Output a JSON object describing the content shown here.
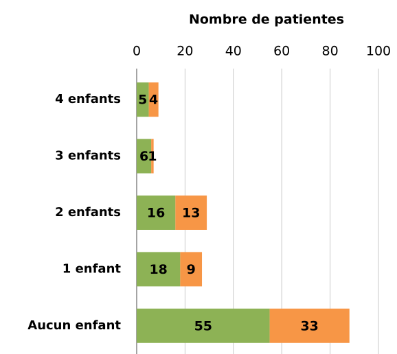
{
  "chart_data": {
    "type": "stacked_barh",
    "title": "Nombre de patientes",
    "categories": [
      "4 enfants",
      "3 enfants",
      "2 enfants",
      "1 enfant",
      "Aucun enfant"
    ],
    "series": [
      {
        "color": "#8db255",
        "values": [
          5,
          6,
          16,
          18,
          55
        ]
      },
      {
        "color": "#f79646",
        "values": [
          4,
          1,
          13,
          9,
          33
        ]
      }
    ],
    "xlim": [
      0,
      100
    ],
    "xticks": [
      0,
      20,
      40,
      60,
      80,
      100
    ],
    "grid": true
  }
}
